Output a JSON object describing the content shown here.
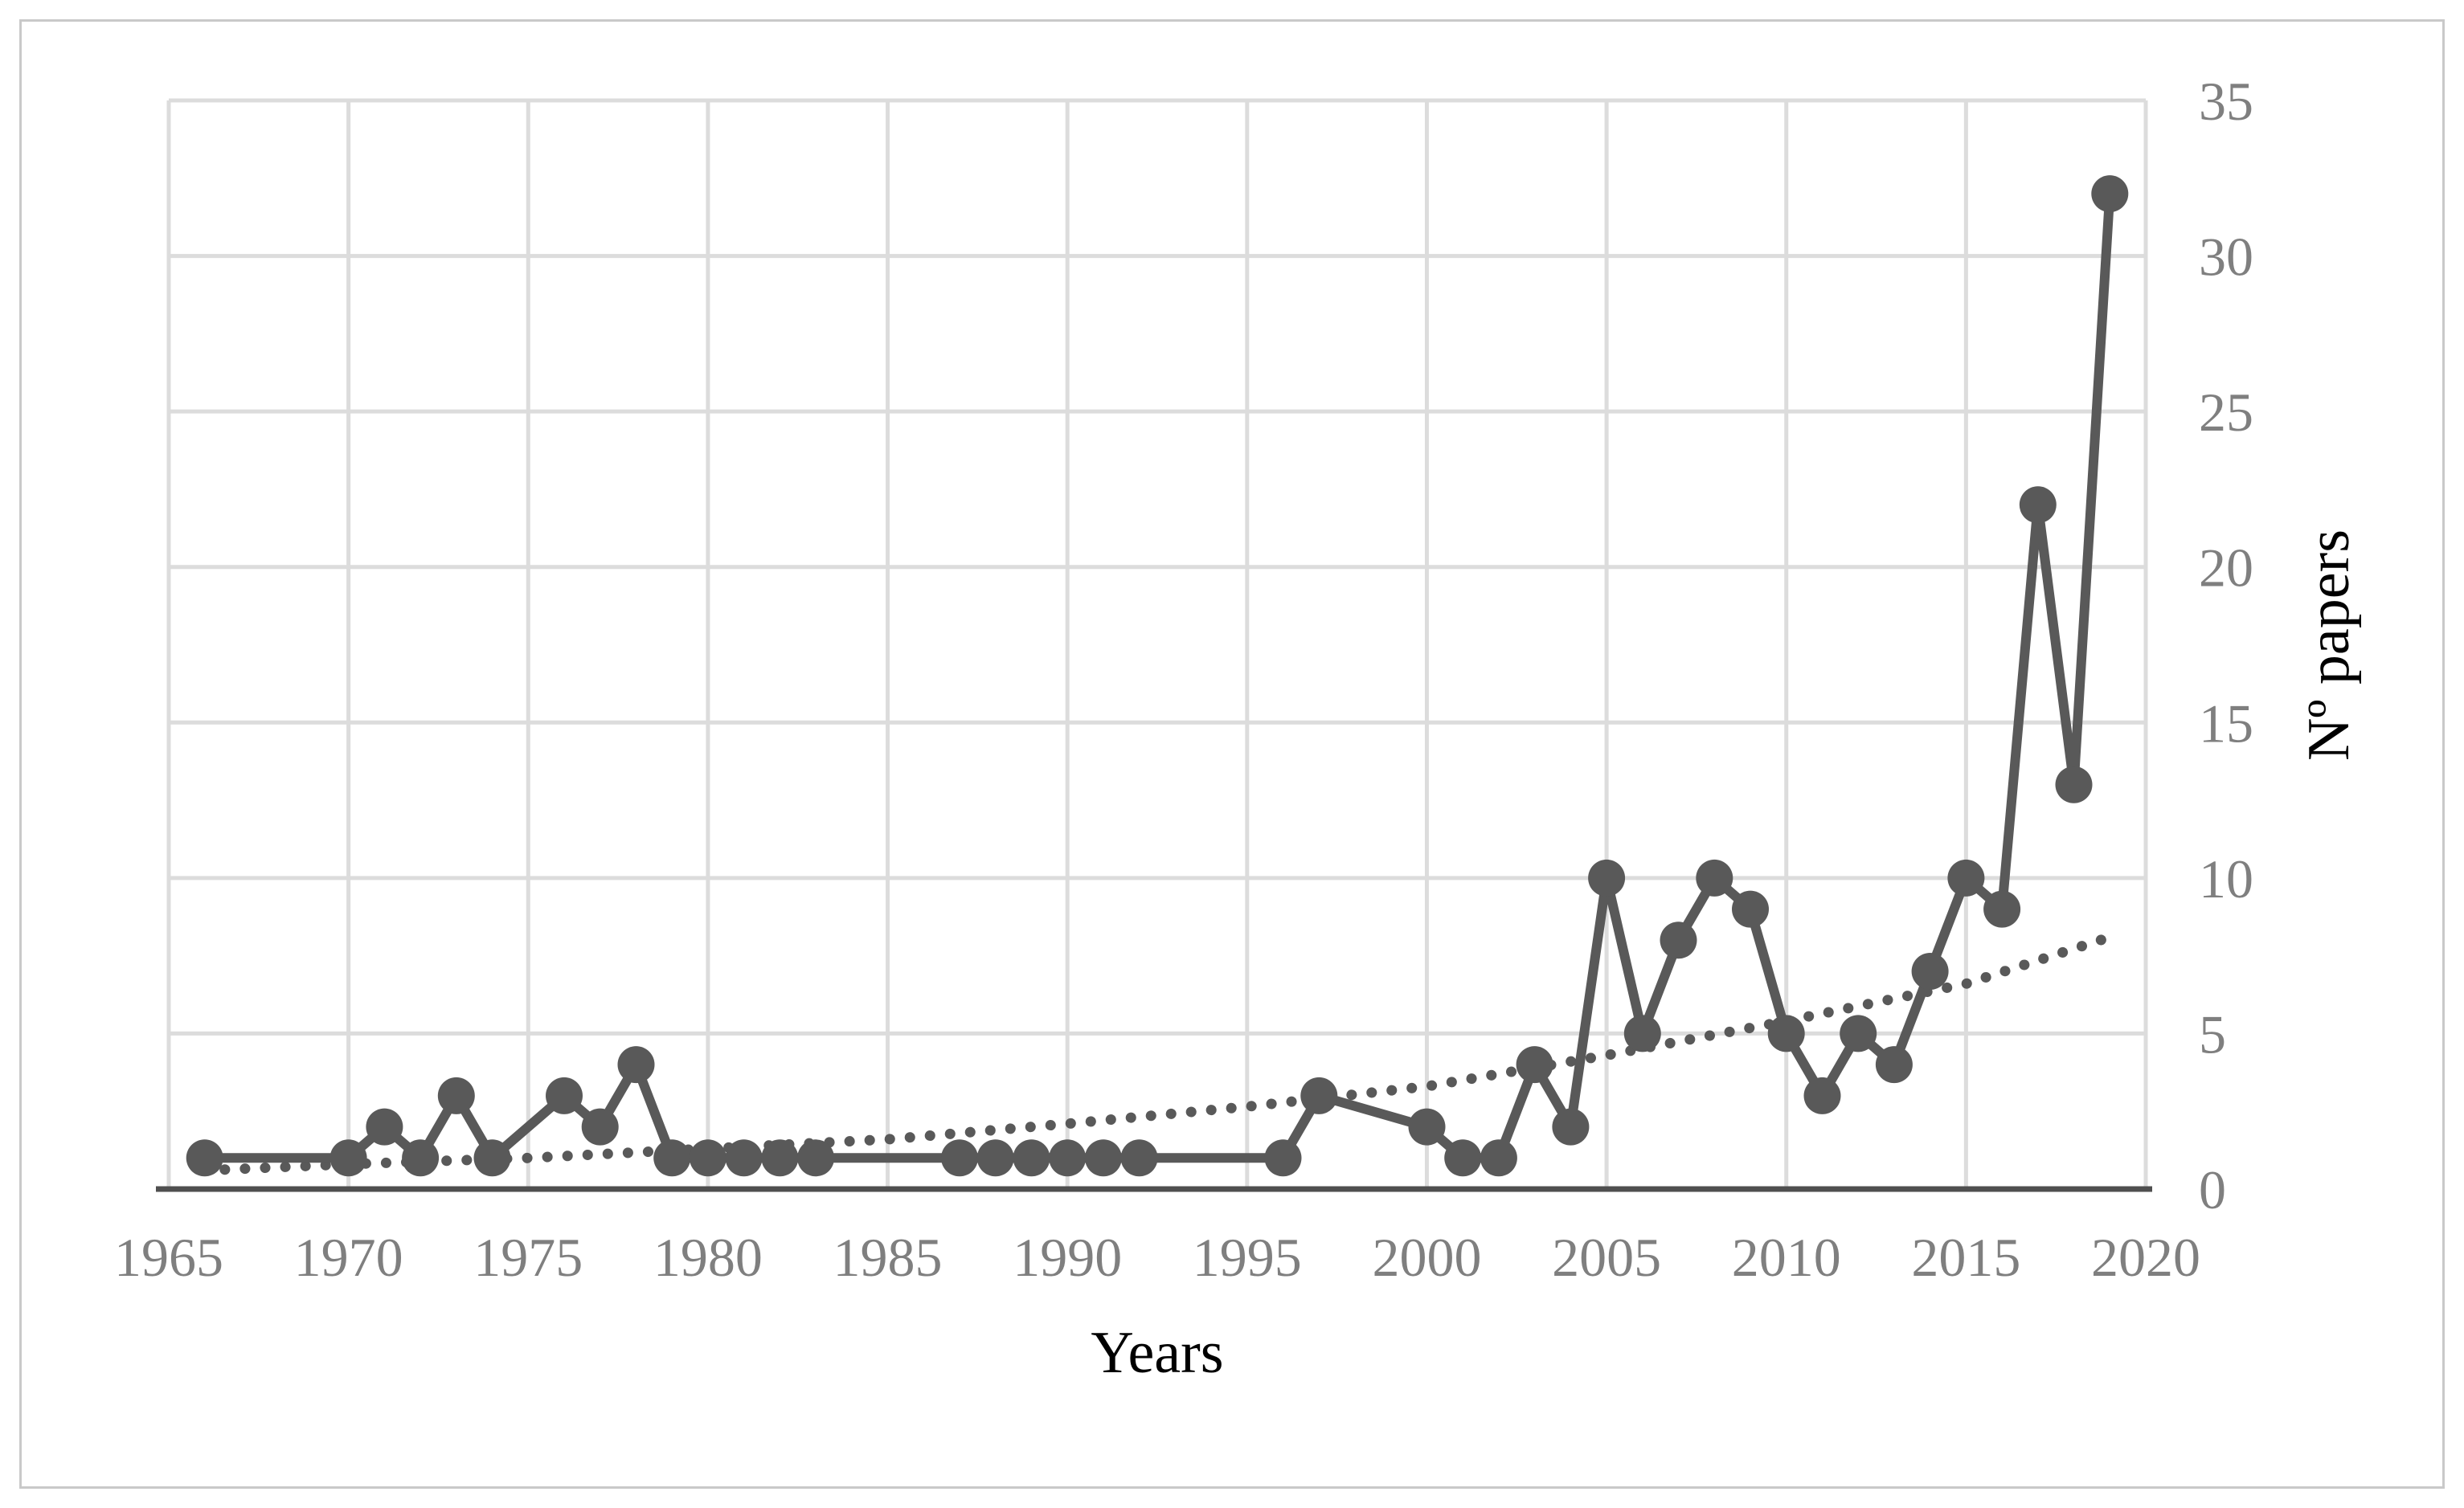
{
  "figure": {
    "x_axis_title": "Years",
    "y_axis_title": "Nº papers"
  },
  "chart_data": {
    "type": "line",
    "title": "",
    "xlabel": "Years",
    "ylabel": "Nº papers",
    "xlim": [
      1965,
      2020
    ],
    "ylim": [
      0,
      35
    ],
    "x_tick_labels": [
      "1965",
      "1970",
      "1975",
      "1980",
      "1985",
      "1990",
      "1995",
      "2000",
      "2005",
      "2010",
      "2015",
      "2020"
    ],
    "y_tick_labels": [
      "0",
      "5",
      "10",
      "15",
      "20",
      "25",
      "30",
      "35"
    ],
    "grid": true,
    "legend_position": "none",
    "series": [
      {
        "name": "papers-per-year",
        "style": "solid-line-with-circle-markers",
        "points": [
          [
            1966,
            1
          ],
          [
            1970,
            1
          ],
          [
            1971,
            2
          ],
          [
            1972,
            1
          ],
          [
            1973,
            3
          ],
          [
            1974,
            1
          ],
          [
            1976,
            3
          ],
          [
            1977,
            2
          ],
          [
            1978,
            4
          ],
          [
            1979,
            1
          ],
          [
            1980,
            1
          ],
          [
            1981,
            1
          ],
          [
            1982,
            1
          ],
          [
            1983,
            1
          ],
          [
            1987,
            1
          ],
          [
            1988,
            1
          ],
          [
            1989,
            1
          ],
          [
            1990,
            1
          ],
          [
            1991,
            1
          ],
          [
            1992,
            1
          ],
          [
            1996,
            1
          ],
          [
            1997,
            3
          ],
          [
            2000,
            2
          ],
          [
            2001,
            1
          ],
          [
            2002,
            1
          ],
          [
            2003,
            4
          ],
          [
            2004,
            2
          ],
          [
            2005,
            10
          ],
          [
            2006,
            5
          ],
          [
            2007,
            8
          ],
          [
            2008,
            10
          ],
          [
            2009,
            9
          ],
          [
            2010,
            5
          ],
          [
            2011,
            3
          ],
          [
            2012,
            5
          ],
          [
            2013,
            4
          ],
          [
            2014,
            7
          ],
          [
            2015,
            10
          ],
          [
            2016,
            9
          ],
          [
            2017,
            22
          ],
          [
            2018,
            13
          ],
          [
            2019,
            32
          ]
        ]
      },
      {
        "name": "trend-curve",
        "style": "dotted",
        "points": [
          [
            1966,
            0.6
          ],
          [
            1970,
            0.8
          ],
          [
            1975,
            1.0
          ],
          [
            1980,
            1.3
          ],
          [
            1985,
            1.6
          ],
          [
            1990,
            2.1
          ],
          [
            1995,
            2.65
          ],
          [
            2000,
            3.3
          ],
          [
            2005,
            4.3
          ],
          [
            2010,
            5.4
          ],
          [
            2015,
            6.6
          ],
          [
            2019,
            8.1
          ]
        ]
      }
    ],
    "colors": {
      "series": "#595959",
      "grid": "#dcdcdc",
      "axis_line": "#4f4f4f",
      "tick_label": "#7f7f7f",
      "axis_title": "#000000",
      "frame_border": "#c9c9c9",
      "background": "#ffffff"
    }
  }
}
